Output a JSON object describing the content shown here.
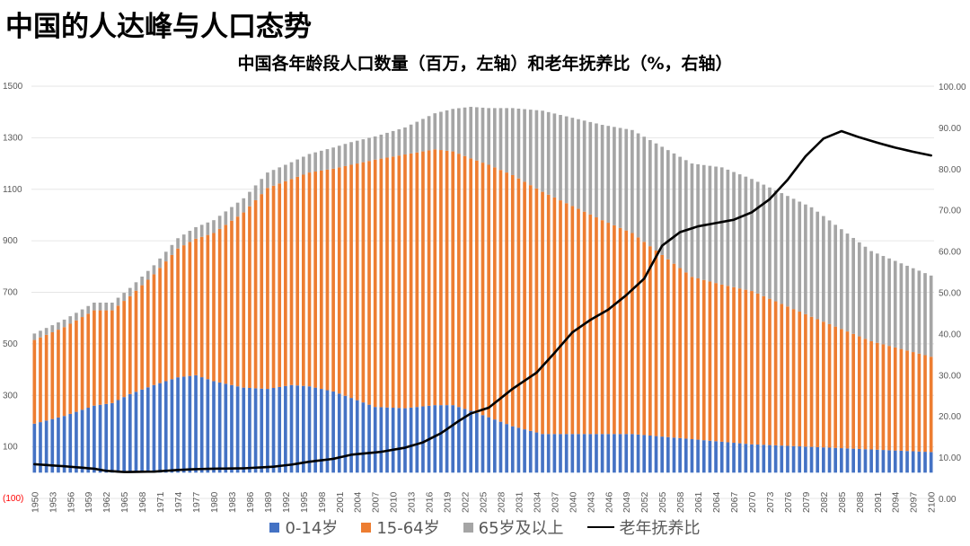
{
  "page_title": "中国的人达峰与人口态势",
  "chart_data": {
    "type": "bar",
    "stacked": true,
    "title": "中国各年龄段人口数量（百万，左轴）和老年抚养比（%，右轴）",
    "xlabel": "",
    "ylabel": "",
    "ylim": [
      -100,
      1500
    ],
    "y2lim": [
      0,
      100
    ],
    "y_ticks": [
      "(100)",
      "100",
      "300",
      "500",
      "700",
      "900",
      "1100",
      "1300",
      "1500"
    ],
    "y_tick_values": [
      -100,
      100,
      300,
      500,
      700,
      900,
      1100,
      1300,
      1500
    ],
    "y2_ticks": [
      "0.00",
      "10.00",
      "20.00",
      "30.00",
      "40.00",
      "50.00",
      "60.00",
      "70.00",
      "80.00",
      "90.00",
      "100.00"
    ],
    "y2_tick_values": [
      0,
      10,
      20,
      30,
      40,
      50,
      60,
      70,
      80,
      90,
      100
    ],
    "x_start": 1950,
    "x_end": 2100,
    "x_tick_labels": [
      "1950",
      "1953",
      "1956",
      "1959",
      "1962",
      "1965",
      "1968",
      "1971",
      "1974",
      "1977",
      "1980",
      "1983",
      "1986",
      "1989",
      "1992",
      "1995",
      "1998",
      "2001",
      "2004",
      "2007",
      "2010",
      "2013",
      "2016",
      "2019",
      "2022",
      "2025",
      "2028",
      "2031",
      "2034",
      "2037",
      "2040",
      "2043",
      "2046",
      "2049",
      "2052",
      "2055",
      "2058",
      "2061",
      "2064",
      "2067",
      "2070",
      "2073",
      "2076",
      "2079",
      "2082",
      "2085",
      "2088",
      "2091",
      "2094",
      "2097",
      "2100"
    ],
    "series": [
      {
        "name": "0-14岁",
        "color": "#4472c4",
        "anchors": [
          [
            1950,
            190
          ],
          [
            1955,
            220
          ],
          [
            1960,
            260
          ],
          [
            1963,
            270
          ],
          [
            1966,
            305
          ],
          [
            1970,
            340
          ],
          [
            1974,
            370
          ],
          [
            1977,
            378
          ],
          [
            1980,
            355
          ],
          [
            1985,
            330
          ],
          [
            1989,
            325
          ],
          [
            1993,
            340
          ],
          [
            1996,
            335
          ],
          [
            2000,
            315
          ],
          [
            2003,
            290
          ],
          [
            2007,
            255
          ],
          [
            2012,
            250
          ],
          [
            2017,
            262
          ],
          [
            2020,
            262
          ],
          [
            2023,
            240
          ],
          [
            2026,
            215
          ],
          [
            2030,
            180
          ],
          [
            2035,
            150
          ],
          [
            2045,
            150
          ],
          [
            2050,
            150
          ],
          [
            2060,
            130
          ],
          [
            2065,
            120
          ],
          [
            2070,
            110
          ],
          [
            2080,
            100
          ],
          [
            2090,
            90
          ],
          [
            2100,
            80
          ]
        ]
      },
      {
        "name": "15-64岁",
        "color": "#ed7d31",
        "anchors": [
          [
            1950,
            325
          ],
          [
            1955,
            345
          ],
          [
            1960,
            370
          ],
          [
            1963,
            360
          ],
          [
            1966,
            380
          ],
          [
            1970,
            430
          ],
          [
            1974,
            500
          ],
          [
            1977,
            530
          ],
          [
            1980,
            575
          ],
          [
            1985,
            680
          ],
          [
            1989,
            780
          ],
          [
            1993,
            800
          ],
          [
            1996,
            830
          ],
          [
            2000,
            865
          ],
          [
            2003,
            905
          ],
          [
            2007,
            960
          ],
          [
            2012,
            985
          ],
          [
            2017,
            993
          ],
          [
            2020,
            985
          ],
          [
            2023,
            980
          ],
          [
            2026,
            980
          ],
          [
            2030,
            975
          ],
          [
            2035,
            940
          ],
          [
            2045,
            830
          ],
          [
            2050,
            780
          ],
          [
            2060,
            630
          ],
          [
            2065,
            610
          ],
          [
            2070,
            595
          ],
          [
            2080,
            505
          ],
          [
            2090,
            420
          ],
          [
            2100,
            370
          ]
        ]
      },
      {
        "name": "65岁及以上",
        "color": "#a5a5a5",
        "anchors": [
          [
            1950,
            25
          ],
          [
            1955,
            29
          ],
          [
            1960,
            30
          ],
          [
            1963,
            30
          ],
          [
            1966,
            32
          ],
          [
            1970,
            35
          ],
          [
            1974,
            40
          ],
          [
            1977,
            45
          ],
          [
            1980,
            50
          ],
          [
            1985,
            55
          ],
          [
            1989,
            60
          ],
          [
            1993,
            65
          ],
          [
            1996,
            72
          ],
          [
            2000,
            82
          ],
          [
            2003,
            88
          ],
          [
            2007,
            90
          ],
          [
            2012,
            105
          ],
          [
            2017,
            140
          ],
          [
            2020,
            165
          ],
          [
            2023,
            200
          ],
          [
            2026,
            220
          ],
          [
            2030,
            260
          ],
          [
            2035,
            315
          ],
          [
            2045,
            370
          ],
          [
            2050,
            400
          ],
          [
            2060,
            440
          ],
          [
            2065,
            455
          ],
          [
            2070,
            435
          ],
          [
            2080,
            425
          ],
          [
            2090,
            350
          ],
          [
            2100,
            315
          ]
        ]
      }
    ],
    "line": {
      "name": "老年抚养比",
      "color": "#000000",
      "anchors": [
        [
          1950,
          8.3
        ],
        [
          1955,
          7.8
        ],
        [
          1960,
          7.2
        ],
        [
          1962,
          6.7
        ],
        [
          1965,
          6.4
        ],
        [
          1970,
          6.5
        ],
        [
          1974,
          6.9
        ],
        [
          1977,
          7.1
        ],
        [
          1980,
          7.2
        ],
        [
          1985,
          7.3
        ],
        [
          1990,
          7.7
        ],
        [
          1993,
          8.2
        ],
        [
          1996,
          8.9
        ],
        [
          2000,
          9.6
        ],
        [
          2003,
          10.6
        ],
        [
          2008,
          11.3
        ],
        [
          2012,
          12.3
        ],
        [
          2015,
          13.6
        ],
        [
          2018,
          15.8
        ],
        [
          2021,
          18.8
        ],
        [
          2023,
          20.6
        ],
        [
          2026,
          22.0
        ],
        [
          2028,
          24.3
        ],
        [
          2030,
          26.6
        ],
        [
          2034,
          30.5
        ],
        [
          2037,
          35.3
        ],
        [
          2040,
          40.3
        ],
        [
          2043,
          43.3
        ],
        [
          2046,
          45.8
        ],
        [
          2049,
          49.3
        ],
        [
          2052,
          53.3
        ],
        [
          2055,
          61.3
        ],
        [
          2058,
          64.6
        ],
        [
          2061,
          66.0
        ],
        [
          2064,
          66.8
        ],
        [
          2067,
          67.6
        ],
        [
          2070,
          69.4
        ],
        [
          2073,
          72.6
        ],
        [
          2076,
          77.3
        ],
        [
          2079,
          83.0
        ],
        [
          2082,
          87.3
        ],
        [
          2085,
          89.1
        ],
        [
          2088,
          87.6
        ],
        [
          2091,
          86.3
        ],
        [
          2094,
          85.1
        ],
        [
          2097,
          84.1
        ],
        [
          2100,
          83.2
        ]
      ]
    }
  },
  "legend": [
    {
      "label": "0-14岁",
      "color": "#4472c4",
      "kind": "bar"
    },
    {
      "label": "15-64岁",
      "color": "#ed7d31",
      "kind": "bar"
    },
    {
      "label": "65岁及以上",
      "color": "#a5a5a5",
      "kind": "bar"
    },
    {
      "label": "老年抚养比",
      "color": "#000000",
      "kind": "line"
    }
  ]
}
